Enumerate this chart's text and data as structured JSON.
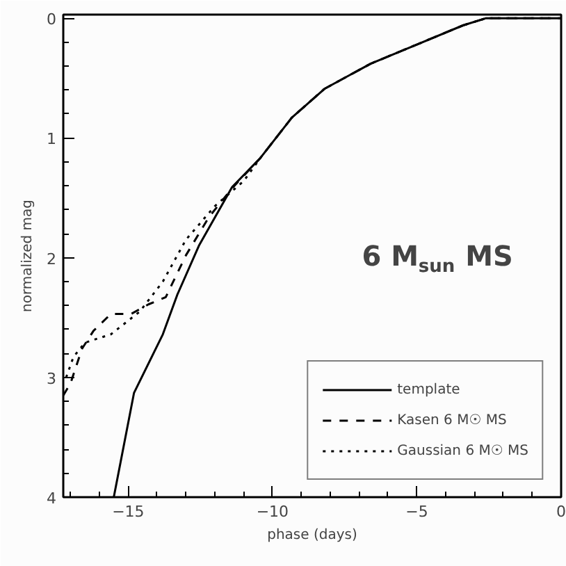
{
  "chart_data": {
    "type": "line",
    "xlabel": "phase (days)",
    "ylabel": "normalized mag",
    "xlim": [
      -17.25,
      0
    ],
    "ylim": [
      4,
      -0.03
    ],
    "xticks": [
      -15,
      -10,
      -5,
      0
    ],
    "yticks": [
      0,
      1,
      2,
      3,
      4
    ],
    "grid": false,
    "legend": "bottom right",
    "annotations": [
      "6 M$_{sun}$ MS"
    ],
    "series": [
      {
        "name": "template",
        "color": "#000000",
        "line_style": "solid",
        "x": [
          -15.5,
          -14.8,
          -13.8,
          -13.3,
          -12.55,
          -11.4,
          -10.43,
          -9.33,
          -8.2,
          -6.6,
          -5.0,
          -3.4,
          -2.6,
          0
        ],
        "values": [
          4.0,
          3.13,
          2.64,
          2.31,
          1.9,
          1.41,
          1.17,
          0.83,
          0.59,
          0.38,
          0.22,
          0.06,
          0.0,
          0.0
        ]
      },
      {
        "name": "Kasen 6 M☉ MS",
        "color": "#000000",
        "line_style": "dashed",
        "x": [
          -17.25,
          -17.0,
          -16.6,
          -16.2,
          -15.6,
          -14.9,
          -14.3,
          -13.7,
          -13.0,
          -12.2,
          -11.4,
          -10.43,
          -9.33,
          -8.2,
          -6.6,
          -5.0,
          -3.4,
          -2.6,
          0
        ],
        "values": [
          3.15,
          3.05,
          2.76,
          2.61,
          2.47,
          2.47,
          2.39,
          2.33,
          1.98,
          1.66,
          1.42,
          1.17,
          0.83,
          0.59,
          0.38,
          0.22,
          0.06,
          0.0,
          0.0
        ]
      },
      {
        "name": "Gaussian 6 M☉ MS",
        "color": "#000000",
        "line_style": "dotted",
        "x": [
          -17.15,
          -16.9,
          -16.5,
          -15.6,
          -14.6,
          -13.8,
          -13.0,
          -12.0,
          -11.0,
          -10.43,
          -9.33,
          -8.2,
          -6.6,
          -5.0,
          -3.4,
          -2.6,
          -0.3
        ],
        "values": [
          3.0,
          2.83,
          2.71,
          2.64,
          2.45,
          2.2,
          1.85,
          1.57,
          1.36,
          1.17,
          0.83,
          0.59,
          0.38,
          0.22,
          0.06,
          0.0,
          0.0
        ]
      }
    ]
  }
}
